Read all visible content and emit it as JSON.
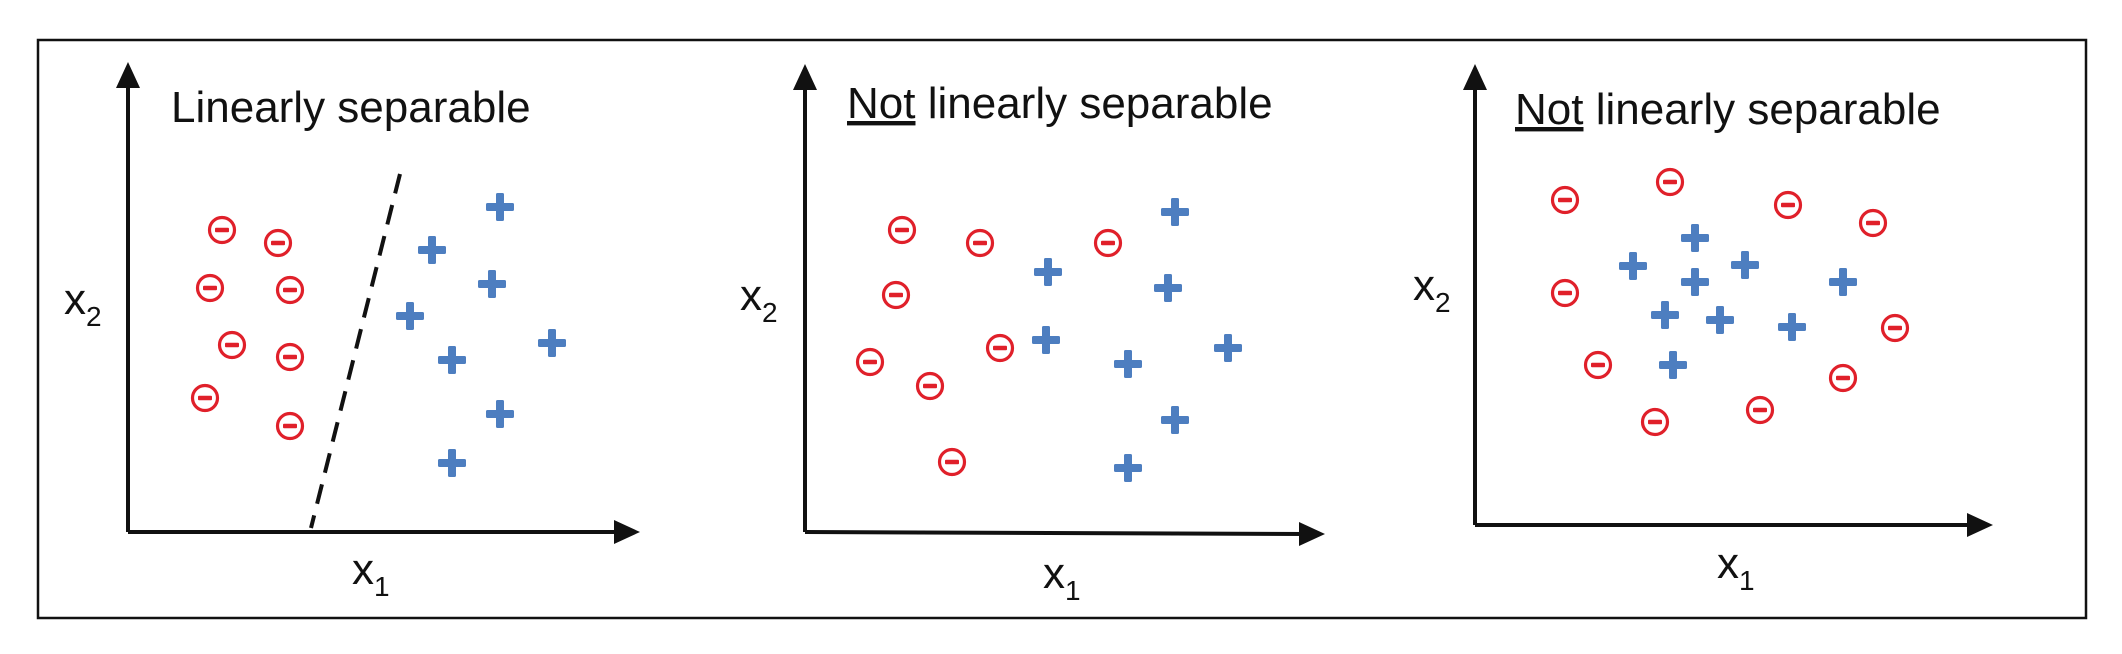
{
  "panels": [
    {
      "title_prefix": "",
      "title_underlined": "",
      "title_rest": "Linearly separable",
      "x_axis_label": "x",
      "x_axis_subscript": "1",
      "y_axis_label": "x",
      "y_axis_subscript": "2",
      "has_separator": true,
      "class_colors": {
        "negative": "#e0202a",
        "positive": "#4d7ec0"
      },
      "class_icons": {
        "negative": "circled-minus-icon",
        "positive": "plus-icon"
      }
    },
    {
      "title_underlined": "Not",
      "title_rest": " linearly separable",
      "x_axis_label": "x",
      "x_axis_subscript": "1",
      "y_axis_label": "x",
      "y_axis_subscript": "2",
      "has_separator": false,
      "class_colors": {
        "negative": "#e0202a",
        "positive": "#4d7ec0"
      },
      "class_icons": {
        "negative": "circled-minus-icon",
        "positive": "plus-icon"
      }
    },
    {
      "title_underlined": "Not",
      "title_rest": " linearly separable",
      "x_axis_label": "x",
      "x_axis_subscript": "1",
      "y_axis_label": "x",
      "y_axis_subscript": "2",
      "has_separator": false,
      "class_colors": {
        "negative": "#e0202a",
        "positive": "#4d7ec0"
      },
      "class_icons": {
        "negative": "circled-minus-icon",
        "positive": "plus-icon"
      }
    }
  ]
}
